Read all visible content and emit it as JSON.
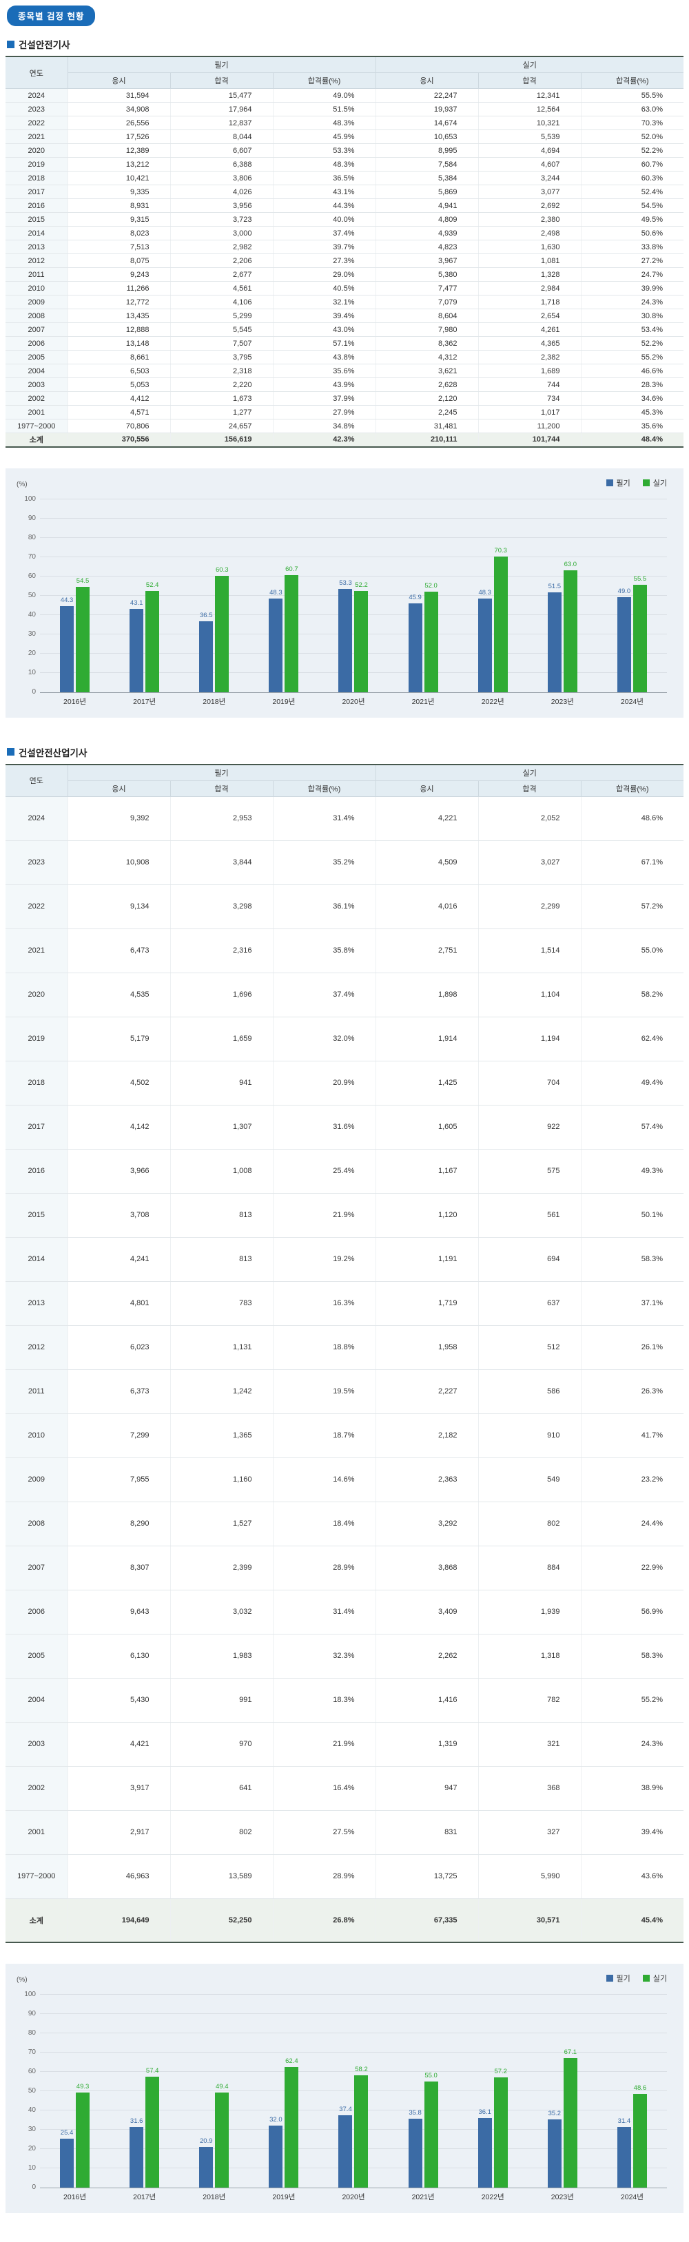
{
  "page": {
    "badge": "종목별 검정 현황"
  },
  "theme": {
    "accent_blue": "#1a6cb8",
    "table_border_dark": "#46584e",
    "table_header_bg": "#e3edf3",
    "chart_panel_bg": "#ecf1f6",
    "written_bar": "#3b6ba5",
    "practical_bar": "#2fab33"
  },
  "sections": [
    {
      "title": "건설안전기사",
      "table": {
        "col_year": "연도",
        "group_written": "필기",
        "group_practical": "실기",
        "sub_headers": [
          "응시",
          "합격",
          "합격률(%)"
        ],
        "rows": [
          [
            "2024",
            "31,594",
            "15,477",
            "49.0%",
            "22,247",
            "12,341",
            "55.5%"
          ],
          [
            "2023",
            "34,908",
            "17,964",
            "51.5%",
            "19,937",
            "12,564",
            "63.0%"
          ],
          [
            "2022",
            "26,556",
            "12,837",
            "48.3%",
            "14,674",
            "10,321",
            "70.3%"
          ],
          [
            "2021",
            "17,526",
            "8,044",
            "45.9%",
            "10,653",
            "5,539",
            "52.0%"
          ],
          [
            "2020",
            "12,389",
            "6,607",
            "53.3%",
            "8,995",
            "4,694",
            "52.2%"
          ],
          [
            "2019",
            "13,212",
            "6,388",
            "48.3%",
            "7,584",
            "4,607",
            "60.7%"
          ],
          [
            "2018",
            "10,421",
            "3,806",
            "36.5%",
            "5,384",
            "3,244",
            "60.3%"
          ],
          [
            "2017",
            "9,335",
            "4,026",
            "43.1%",
            "5,869",
            "3,077",
            "52.4%"
          ],
          [
            "2016",
            "8,931",
            "3,956",
            "44.3%",
            "4,941",
            "2,692",
            "54.5%"
          ],
          [
            "2015",
            "9,315",
            "3,723",
            "40.0%",
            "4,809",
            "2,380",
            "49.5%"
          ],
          [
            "2014",
            "8,023",
            "3,000",
            "37.4%",
            "4,939",
            "2,498",
            "50.6%"
          ],
          [
            "2013",
            "7,513",
            "2,982",
            "39.7%",
            "4,823",
            "1,630",
            "33.8%"
          ],
          [
            "2012",
            "8,075",
            "2,206",
            "27.3%",
            "3,967",
            "1,081",
            "27.2%"
          ],
          [
            "2011",
            "9,243",
            "2,677",
            "29.0%",
            "5,380",
            "1,328",
            "24.7%"
          ],
          [
            "2010",
            "11,266",
            "4,561",
            "40.5%",
            "7,477",
            "2,984",
            "39.9%"
          ],
          [
            "2009",
            "12,772",
            "4,106",
            "32.1%",
            "7,079",
            "1,718",
            "24.3%"
          ],
          [
            "2008",
            "13,435",
            "5,299",
            "39.4%",
            "8,604",
            "2,654",
            "30.8%"
          ],
          [
            "2007",
            "12,888",
            "5,545",
            "43.0%",
            "7,980",
            "4,261",
            "53.4%"
          ],
          [
            "2006",
            "13,148",
            "7,507",
            "57.1%",
            "8,362",
            "4,365",
            "52.2%"
          ],
          [
            "2005",
            "8,661",
            "3,795",
            "43.8%",
            "4,312",
            "2,382",
            "55.2%"
          ],
          [
            "2004",
            "6,503",
            "2,318",
            "35.6%",
            "3,621",
            "1,689",
            "46.6%"
          ],
          [
            "2003",
            "5,053",
            "2,220",
            "43.9%",
            "2,628",
            "744",
            "28.3%"
          ],
          [
            "2002",
            "4,412",
            "1,673",
            "37.9%",
            "2,120",
            "734",
            "34.6%"
          ],
          [
            "2001",
            "4,571",
            "1,277",
            "27.9%",
            "2,245",
            "1,017",
            "45.3%"
          ],
          [
            "1977~2000",
            "70,806",
            "24,657",
            "34.8%",
            "31,481",
            "11,200",
            "35.6%"
          ],
          [
            "소계",
            "370,556",
            "156,619",
            "42.3%",
            "210,111",
            "101,744",
            "48.4%"
          ]
        ]
      }
    },
    {
      "title": "건설안전산업기사",
      "table": {
        "col_year": "연도",
        "group_written": "필기",
        "group_practical": "실기",
        "sub_headers": [
          "응시",
          "합격",
          "합격률(%)"
        ],
        "rows": [
          [
            "2024",
            "9,392",
            "2,953",
            "31.4%",
            "4,221",
            "2,052",
            "48.6%"
          ],
          [
            "2023",
            "10,908",
            "3,844",
            "35.2%",
            "4,509",
            "3,027",
            "67.1%"
          ],
          [
            "2022",
            "9,134",
            "3,298",
            "36.1%",
            "4,016",
            "2,299",
            "57.2%"
          ],
          [
            "2021",
            "6,473",
            "2,316",
            "35.8%",
            "2,751",
            "1,514",
            "55.0%"
          ],
          [
            "2020",
            "4,535",
            "1,696",
            "37.4%",
            "1,898",
            "1,104",
            "58.2%"
          ],
          [
            "2019",
            "5,179",
            "1,659",
            "32.0%",
            "1,914",
            "1,194",
            "62.4%"
          ],
          [
            "2018",
            "4,502",
            "941",
            "20.9%",
            "1,425",
            "704",
            "49.4%"
          ],
          [
            "2017",
            "4,142",
            "1,307",
            "31.6%",
            "1,605",
            "922",
            "57.4%"
          ],
          [
            "2016",
            "3,966",
            "1,008",
            "25.4%",
            "1,167",
            "575",
            "49.3%"
          ],
          [
            "2015",
            "3,708",
            "813",
            "21.9%",
            "1,120",
            "561",
            "50.1%"
          ],
          [
            "2014",
            "4,241",
            "813",
            "19.2%",
            "1,191",
            "694",
            "58.3%"
          ],
          [
            "2013",
            "4,801",
            "783",
            "16.3%",
            "1,719",
            "637",
            "37.1%"
          ],
          [
            "2012",
            "6,023",
            "1,131",
            "18.8%",
            "1,958",
            "512",
            "26.1%"
          ],
          [
            "2011",
            "6,373",
            "1,242",
            "19.5%",
            "2,227",
            "586",
            "26.3%"
          ],
          [
            "2010",
            "7,299",
            "1,365",
            "18.7%",
            "2,182",
            "910",
            "41.7%"
          ],
          [
            "2009",
            "7,955",
            "1,160",
            "14.6%",
            "2,363",
            "549",
            "23.2%"
          ],
          [
            "2008",
            "8,290",
            "1,527",
            "18.4%",
            "3,292",
            "802",
            "24.4%"
          ],
          [
            "2007",
            "8,307",
            "2,399",
            "28.9%",
            "3,868",
            "884",
            "22.9%"
          ],
          [
            "2006",
            "9,643",
            "3,032",
            "31.4%",
            "3,409",
            "1,939",
            "56.9%"
          ],
          [
            "2005",
            "6,130",
            "1,983",
            "32.3%",
            "2,262",
            "1,318",
            "58.3%"
          ],
          [
            "2004",
            "5,430",
            "991",
            "18.3%",
            "1,416",
            "782",
            "55.2%"
          ],
          [
            "2003",
            "4,421",
            "970",
            "21.9%",
            "1,319",
            "321",
            "24.3%"
          ],
          [
            "2002",
            "3,917",
            "641",
            "16.4%",
            "947",
            "368",
            "38.9%"
          ],
          [
            "2001",
            "2,917",
            "802",
            "27.5%",
            "831",
            "327",
            "39.4%"
          ],
          [
            "1977~2000",
            "46,963",
            "13,589",
            "28.9%",
            "13,725",
            "5,990",
            "43.6%"
          ],
          [
            "소계",
            "194,649",
            "52,250",
            "26.8%",
            "67,335",
            "30,571",
            "45.4%"
          ]
        ]
      }
    }
  ],
  "chart_data": [
    {
      "type": "bar",
      "section": "건설안전기사",
      "unit_label": "(%)",
      "categories": [
        "2016년",
        "2017년",
        "2018년",
        "2019년",
        "2020년",
        "2021년",
        "2022년",
        "2023년",
        "2024년"
      ],
      "series": [
        {
          "name": "필기",
          "color": "#3b6ba5",
          "values": [
            44.3,
            43.1,
            36.5,
            48.3,
            53.3,
            45.9,
            48.3,
            51.5,
            49.0
          ]
        },
        {
          "name": "실기",
          "color": "#2fab33",
          "values": [
            54.5,
            52.4,
            60.3,
            60.7,
            52.2,
            52.0,
            70.3,
            63.0,
            55.5
          ]
        }
      ],
      "ylim": [
        0,
        100
      ],
      "ytick_step": 10,
      "grid": true,
      "legend_position": "top-right"
    },
    {
      "type": "bar",
      "section": "건설안전산업기사",
      "unit_label": "(%)",
      "categories": [
        "2016년",
        "2017년",
        "2018년",
        "2019년",
        "2020년",
        "2021년",
        "2022년",
        "2023년",
        "2024년"
      ],
      "series": [
        {
          "name": "필기",
          "color": "#3b6ba5",
          "values": [
            25.4,
            31.6,
            20.9,
            32.0,
            37.4,
            35.8,
            36.1,
            35.2,
            31.4
          ]
        },
        {
          "name": "실기",
          "color": "#2fab33",
          "values": [
            49.3,
            57.4,
            49.4,
            62.4,
            58.2,
            55.0,
            57.2,
            67.1,
            48.6
          ]
        }
      ],
      "ylim": [
        0,
        100
      ],
      "ytick_step": 10,
      "grid": true,
      "legend_position": "top-right"
    }
  ]
}
